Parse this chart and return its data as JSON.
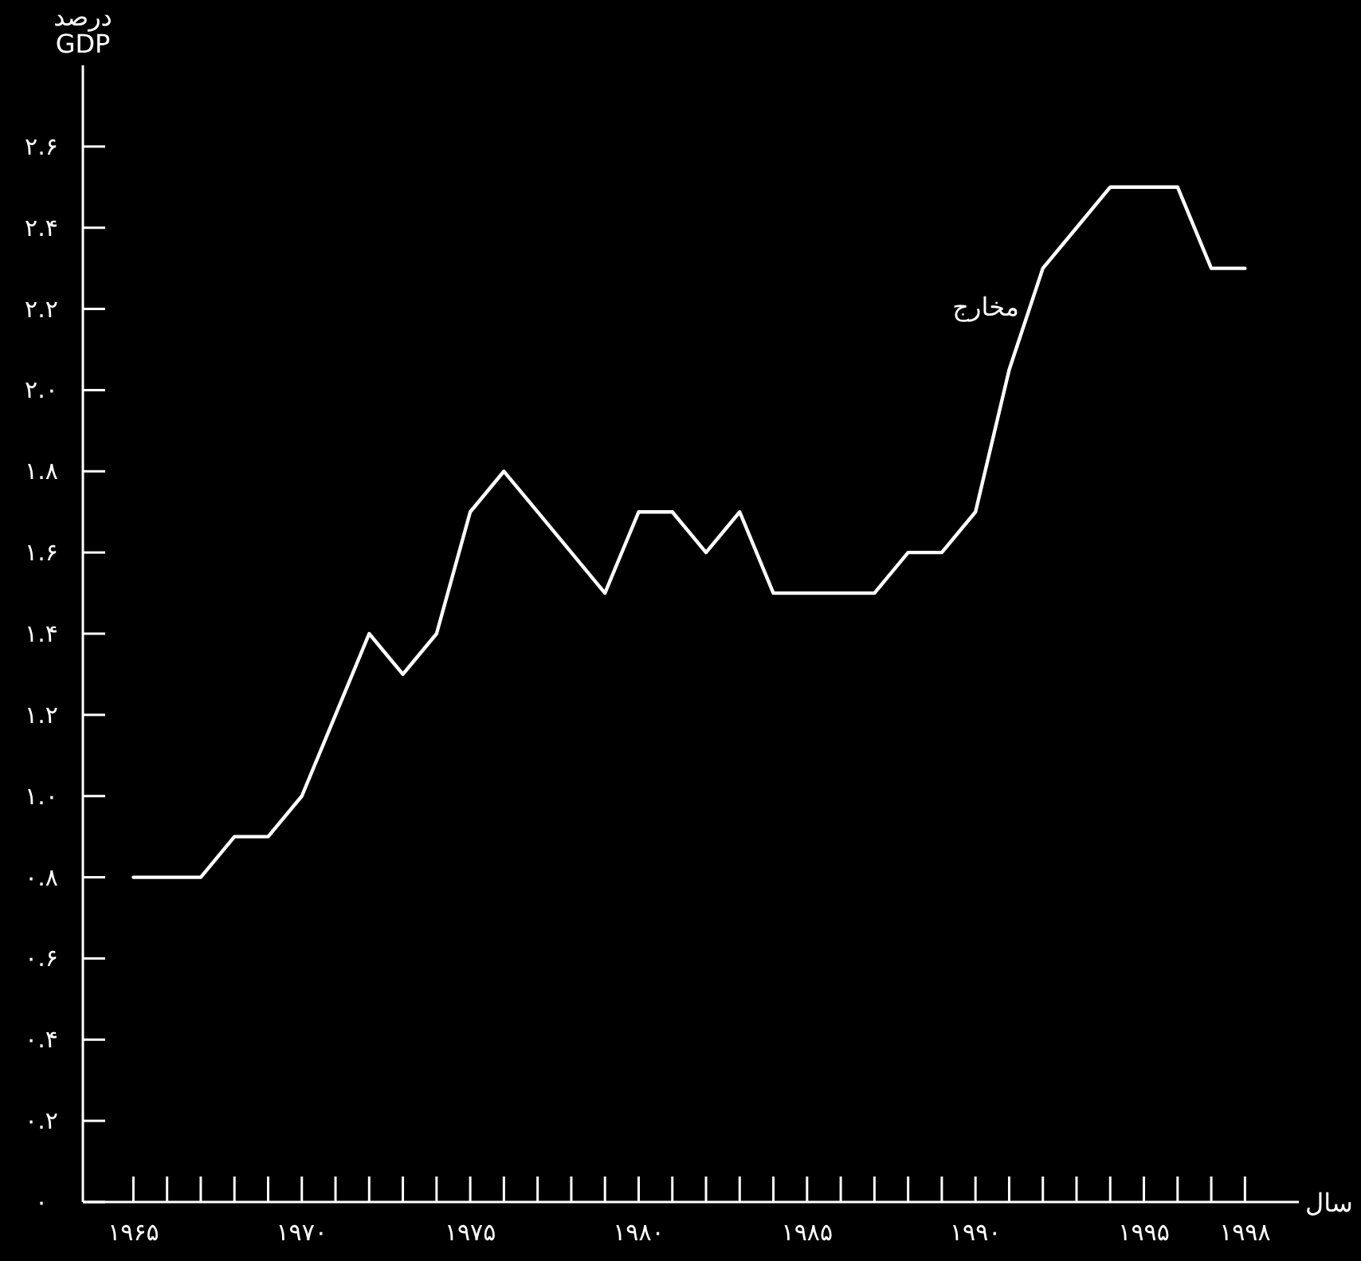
{
  "chart_data": {
    "type": "line",
    "xlabel": "سال",
    "ylabel": "درصد GDP",
    "x": [
      1965,
      1966,
      1967,
      1968,
      1969,
      1970,
      1971,
      1972,
      1973,
      1974,
      1975,
      1976,
      1977,
      1978,
      1979,
      1980,
      1981,
      1982,
      1983,
      1984,
      1985,
      1986,
      1987,
      1988,
      1989,
      1990,
      1991,
      1992,
      1993,
      1994,
      1995,
      1996,
      1997,
      1998
    ],
    "series": [
      {
        "name": "مخارج",
        "color": "#ffffff",
        "values": [
          0.8,
          0.8,
          0.8,
          0.9,
          0.9,
          1.0,
          1.2,
          1.4,
          1.3,
          1.4,
          1.7,
          1.8,
          1.7,
          1.6,
          1.5,
          1.7,
          1.7,
          1.6,
          1.7,
          1.5,
          1.5,
          1.5,
          1.5,
          1.6,
          1.6,
          1.7,
          2.05,
          2.3,
          2.4,
          2.5,
          2.5,
          2.5,
          2.3,
          2.3
        ]
      }
    ],
    "xlim": [
      1963.5,
      1999.6
    ],
    "ylim": [
      0,
      2.8
    ],
    "xticks": [
      {
        "value": 1965,
        "label": "۱۹۶۵"
      },
      {
        "value": 1966,
        "label": null
      },
      {
        "value": 1967,
        "label": null
      },
      {
        "value": 1968,
        "label": null
      },
      {
        "value": 1969,
        "label": null
      },
      {
        "value": 1970,
        "label": "۱۹۷۰"
      },
      {
        "value": 1971,
        "label": null
      },
      {
        "value": 1972,
        "label": null
      },
      {
        "value": 1973,
        "label": null
      },
      {
        "value": 1974,
        "label": null
      },
      {
        "value": 1975,
        "label": "۱۹۷۵"
      },
      {
        "value": 1976,
        "label": null
      },
      {
        "value": 1977,
        "label": null
      },
      {
        "value": 1978,
        "label": null
      },
      {
        "value": 1979,
        "label": null
      },
      {
        "value": 1980,
        "label": "۱۹۸۰"
      },
      {
        "value": 1981,
        "label": null
      },
      {
        "value": 1982,
        "label": null
      },
      {
        "value": 1983,
        "label": null
      },
      {
        "value": 1984,
        "label": null
      },
      {
        "value": 1985,
        "label": "۱۹۸۵"
      },
      {
        "value": 1986,
        "label": null
      },
      {
        "value": 1987,
        "label": null
      },
      {
        "value": 1988,
        "label": null
      },
      {
        "value": 1989,
        "label": null
      },
      {
        "value": 1990,
        "label": "۱۹۹۰"
      },
      {
        "value": 1991,
        "label": null
      },
      {
        "value": 1992,
        "label": null
      },
      {
        "value": 1993,
        "label": null
      },
      {
        "value": 1994,
        "label": null
      },
      {
        "value": 1995,
        "label": "۱۹۹۵"
      },
      {
        "value": 1996,
        "label": null
      },
      {
        "value": 1997,
        "label": null
      },
      {
        "value": 1998,
        "label": "۱۹۹۸"
      }
    ],
    "yticks": [
      {
        "value": 0,
        "label": "۰"
      },
      {
        "value": 0.2,
        "label": "۰.۲"
      },
      {
        "value": 0.4,
        "label": "۰.۴"
      },
      {
        "value": 0.6,
        "label": "۰.۶"
      },
      {
        "value": 0.8,
        "label": "۰.۸"
      },
      {
        "value": 1.0,
        "label": "۱.۰"
      },
      {
        "value": 1.2,
        "label": "۱.۲"
      },
      {
        "value": 1.4,
        "label": "۱.۴"
      },
      {
        "value": 1.6,
        "label": "۱.۶"
      },
      {
        "value": 1.8,
        "label": "۱.۸"
      },
      {
        "value": 2.0,
        "label": "۲.۰"
      },
      {
        "value": 2.2,
        "label": "۲.۲"
      },
      {
        "value": 2.4,
        "label": "۲.۴"
      },
      {
        "value": 2.6,
        "label": "۲.۶"
      }
    ],
    "grid": false,
    "legend": false,
    "marker": "none",
    "line_style": "solid"
  }
}
